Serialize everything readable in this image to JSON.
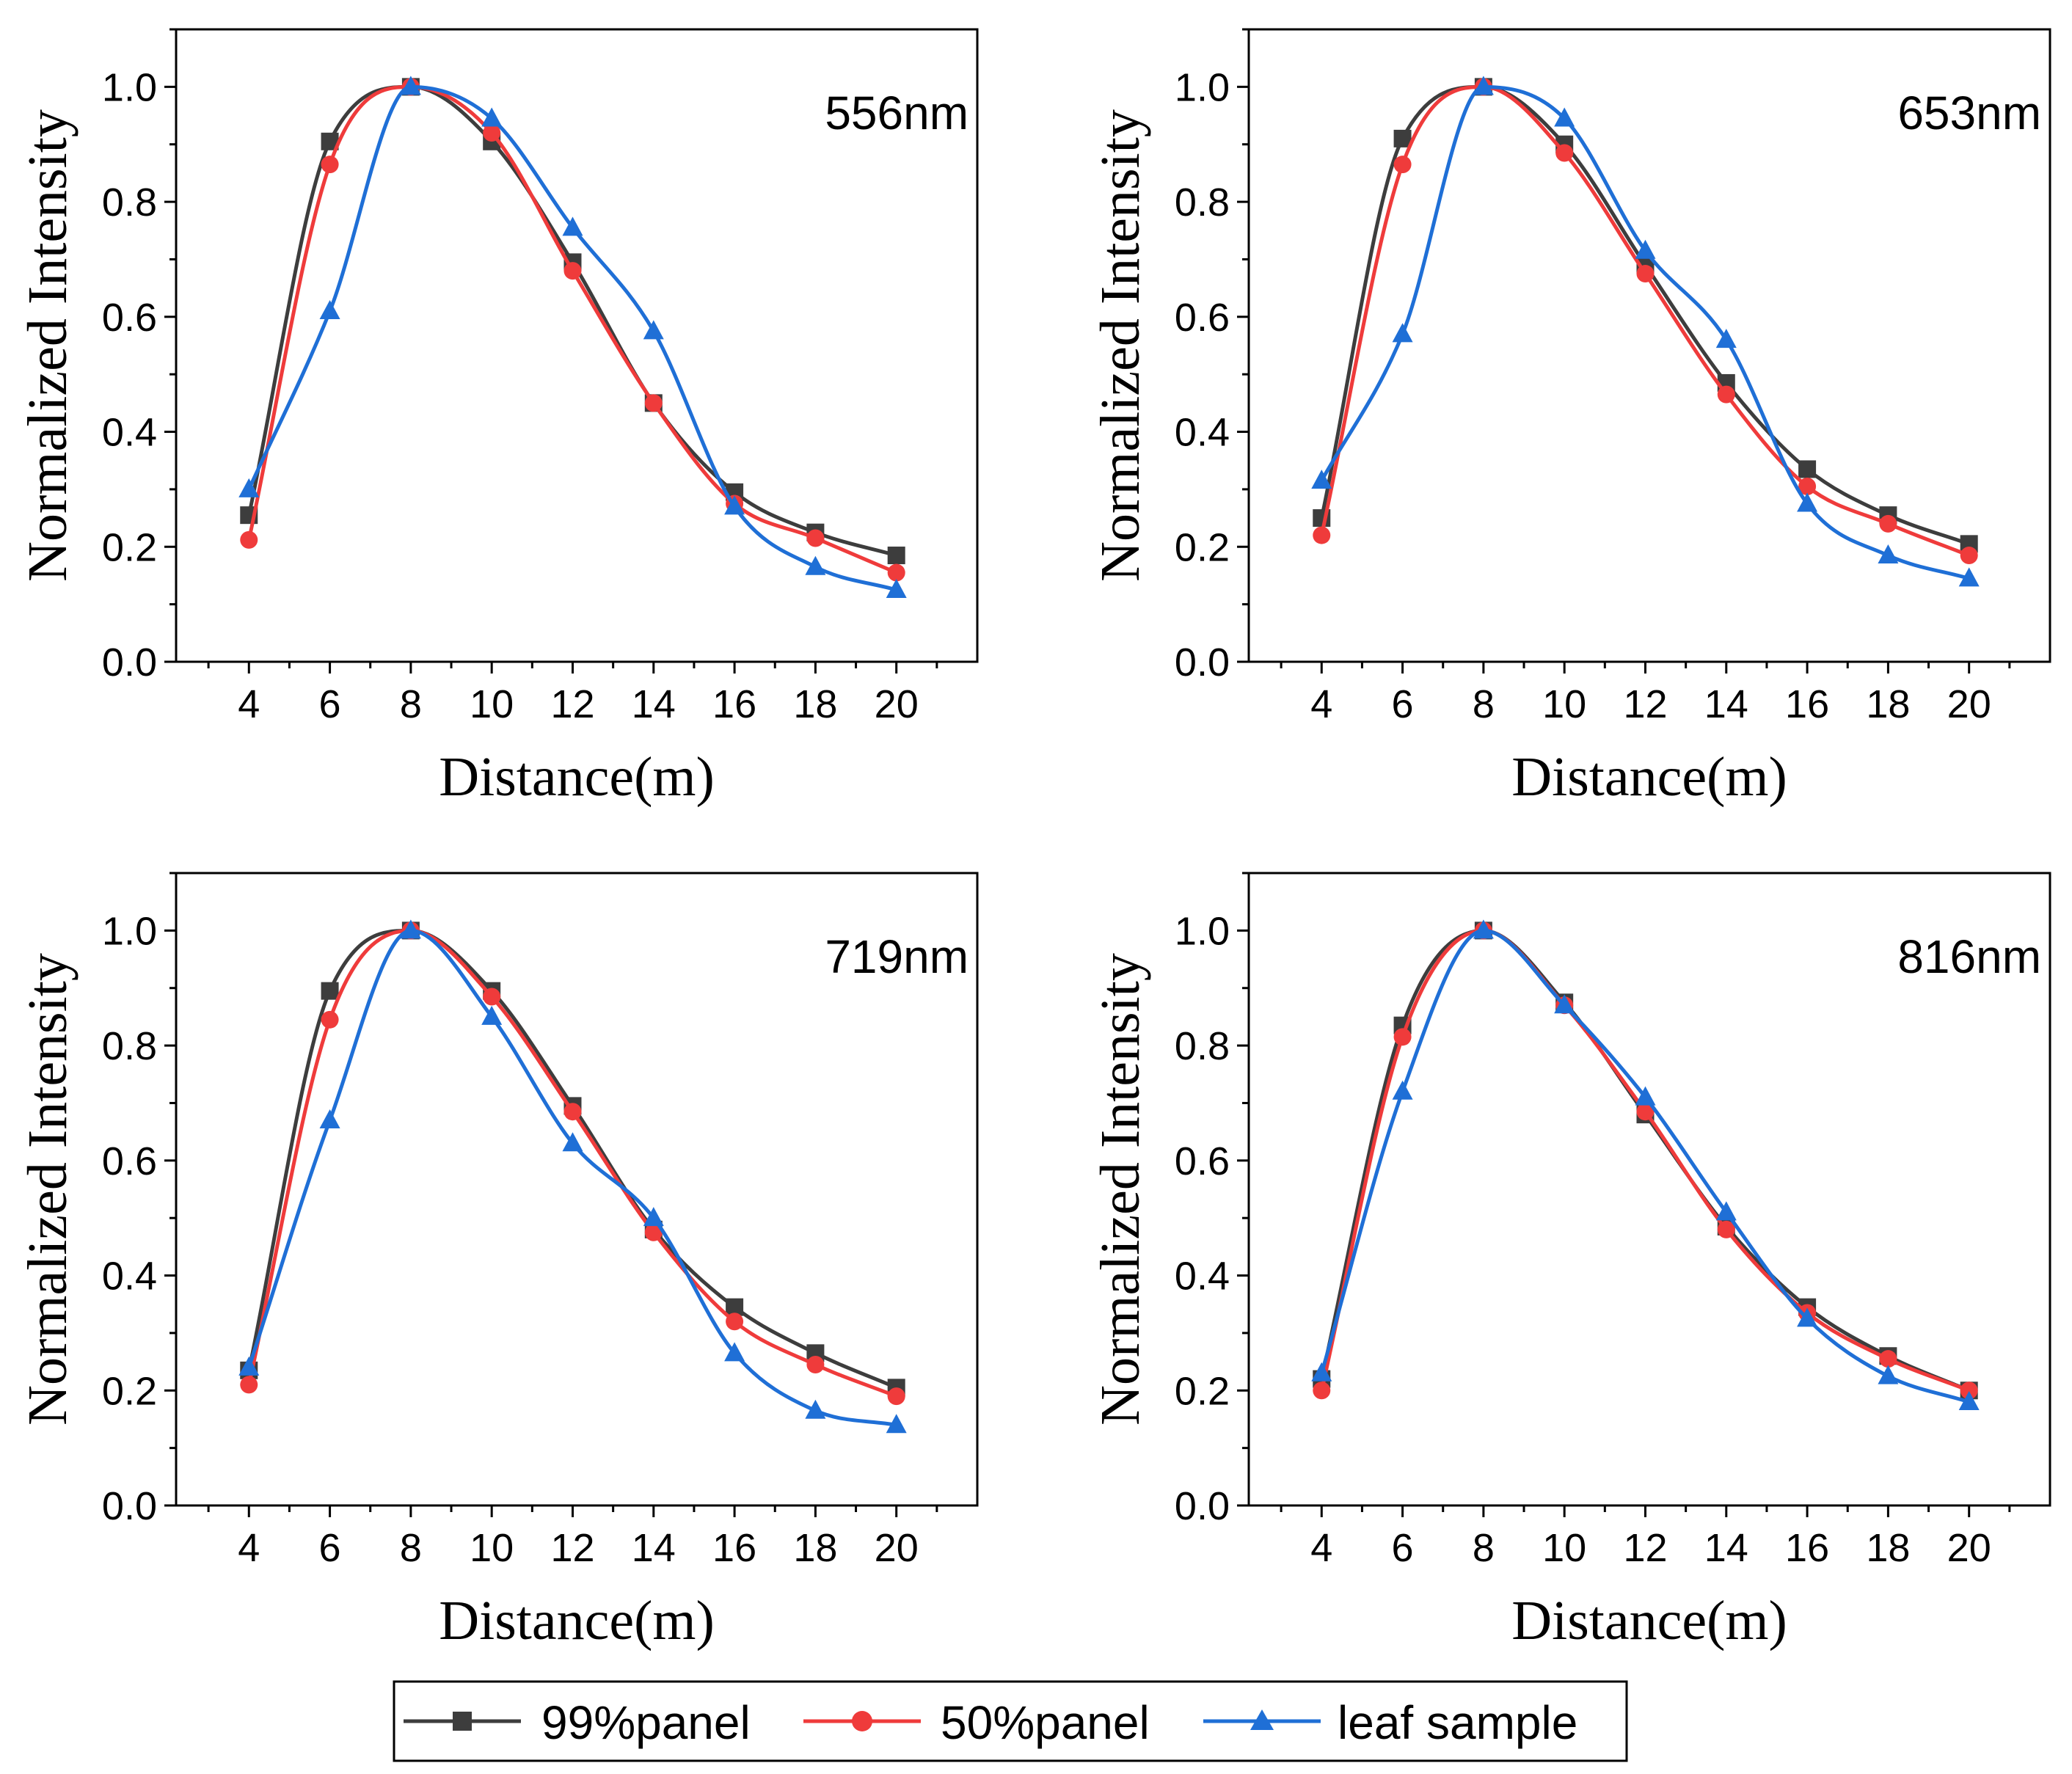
{
  "chart_data": [
    {
      "type": "line",
      "annotation": "556nm",
      "xlabel": "Distance(m)",
      "ylabel": "Normalized Intensity",
      "x": [
        4,
        6,
        8,
        10,
        12,
        14,
        16,
        18,
        20
      ],
      "xticks": [
        "4",
        "6",
        "8",
        "10",
        "12",
        "14",
        "16",
        "18",
        "20"
      ],
      "yticks": [
        "0.0",
        "0.2",
        "0.4",
        "0.6",
        "0.8",
        "1.0"
      ],
      "xlim": [
        2.2,
        22
      ],
      "ylim": [
        0,
        1.1
      ],
      "series": [
        {
          "name": "99%panel",
          "values": [
            0.255,
            0.905,
            1.0,
            0.905,
            0.695,
            0.45,
            0.295,
            0.225,
            0.185
          ]
        },
        {
          "name": "50%panel",
          "values": [
            0.212,
            0.865,
            1.0,
            0.92,
            0.68,
            0.45,
            0.275,
            0.215,
            0.155
          ]
        },
        {
          "name": "leaf sample",
          "values": [
            0.3,
            0.61,
            1.0,
            0.945,
            0.755,
            0.575,
            0.27,
            0.165,
            0.125
          ]
        }
      ]
    },
    {
      "type": "line",
      "annotation": "653nm",
      "xlabel": "Distance(m)",
      "ylabel": "Normalized Intensity",
      "x": [
        4,
        6,
        8,
        10,
        12,
        14,
        16,
        18,
        20
      ],
      "xticks": [
        "4",
        "6",
        "8",
        "10",
        "12",
        "14",
        "16",
        "18",
        "20"
      ],
      "yticks": [
        "0.0",
        "0.2",
        "0.4",
        "0.6",
        "0.8",
        "1.0"
      ],
      "xlim": [
        2.2,
        22
      ],
      "ylim": [
        0,
        1.1
      ],
      "series": [
        {
          "name": "99%panel",
          "values": [
            0.25,
            0.91,
            1.0,
            0.9,
            0.69,
            0.485,
            0.335,
            0.255,
            0.205
          ]
        },
        {
          "name": "50%panel",
          "values": [
            0.22,
            0.865,
            1.0,
            0.885,
            0.675,
            0.465,
            0.305,
            0.24,
            0.185
          ]
        },
        {
          "name": "leaf sample",
          "values": [
            0.315,
            0.57,
            1.0,
            0.945,
            0.715,
            0.56,
            0.275,
            0.185,
            0.145
          ]
        }
      ]
    },
    {
      "type": "line",
      "annotation": "719nm",
      "xlabel": "Distance(m)",
      "ylabel": "Normalized Intensity",
      "x": [
        4,
        6,
        8,
        10,
        12,
        14,
        16,
        18,
        20
      ],
      "xticks": [
        "4",
        "6",
        "8",
        "10",
        "12",
        "14",
        "16",
        "18",
        "20"
      ],
      "yticks": [
        "0.0",
        "0.2",
        "0.4",
        "0.6",
        "0.8",
        "1.0"
      ],
      "xlim": [
        2.2,
        22
      ],
      "ylim": [
        0,
        1.1
      ],
      "series": [
        {
          "name": "99%panel",
          "values": [
            0.235,
            0.895,
            1.0,
            0.895,
            0.695,
            0.48,
            0.345,
            0.265,
            0.205
          ]
        },
        {
          "name": "50%panel",
          "values": [
            0.21,
            0.845,
            1.0,
            0.885,
            0.685,
            0.475,
            0.32,
            0.245,
            0.19
          ]
        },
        {
          "name": "leaf sample",
          "values": [
            0.24,
            0.67,
            1.0,
            0.85,
            0.63,
            0.5,
            0.265,
            0.165,
            0.14
          ]
        }
      ]
    },
    {
      "type": "line",
      "annotation": "816nm",
      "xlabel": "Distance(m)",
      "ylabel": "Normalized Intensity",
      "x": [
        4,
        6,
        8,
        10,
        12,
        14,
        16,
        18,
        20
      ],
      "xticks": [
        "4",
        "6",
        "8",
        "10",
        "12",
        "14",
        "16",
        "18",
        "20"
      ],
      "yticks": [
        "0.0",
        "0.2",
        "0.4",
        "0.6",
        "0.8",
        "1.0"
      ],
      "xlim": [
        2.2,
        22
      ],
      "ylim": [
        0,
        1.1
      ],
      "series": [
        {
          "name": "99%panel",
          "values": [
            0.22,
            0.835,
            1.0,
            0.875,
            0.68,
            0.485,
            0.345,
            0.26,
            0.2
          ]
        },
        {
          "name": "50%panel",
          "values": [
            0.2,
            0.815,
            1.0,
            0.87,
            0.685,
            0.48,
            0.335,
            0.255,
            0.2
          ]
        },
        {
          "name": "leaf sample",
          "values": [
            0.23,
            0.72,
            1.0,
            0.87,
            0.71,
            0.51,
            0.325,
            0.225,
            0.18
          ]
        }
      ]
    }
  ],
  "legend": {
    "items": [
      {
        "name": "99%panel",
        "color": "#3d3d3d",
        "marker": "square"
      },
      {
        "name": "50%panel",
        "color": "#ef3b3b",
        "marker": "circle"
      },
      {
        "name": "leaf sample",
        "color": "#1f6fd6",
        "marker": "triangle"
      }
    ]
  },
  "colors": {
    "series": [
      "#3d3d3d",
      "#ef3b3b",
      "#1f6fd6"
    ]
  }
}
